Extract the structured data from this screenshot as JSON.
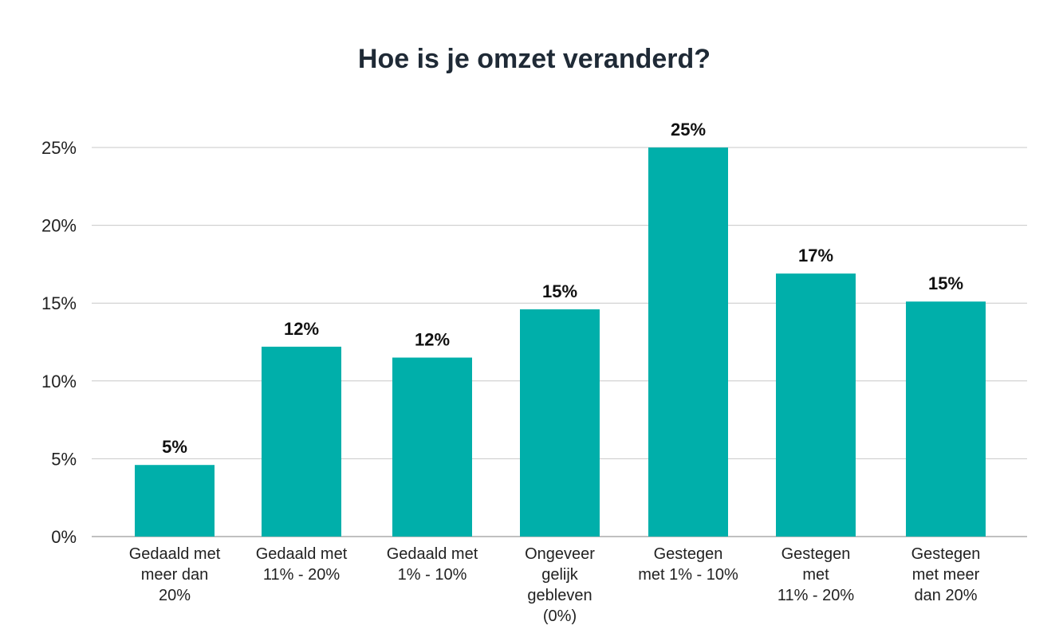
{
  "colors": {
    "bar": "#00afaa",
    "title": "#1f2a36"
  },
  "chart_data": {
    "type": "bar",
    "title": "Hoe is je omzet veranderd?",
    "xlabel": "",
    "ylabel": "",
    "ylim": [
      0,
      25
    ],
    "yticks": [
      0,
      5,
      10,
      15,
      20,
      25
    ],
    "ytick_labels": [
      "0%",
      "5%",
      "10%",
      "15%",
      "20%",
      "25%"
    ],
    "grid": true,
    "categories": [
      "Gedaald met meer dan 20%",
      "Gedaald met 11% - 20%",
      "Gedaald met 1% - 10%",
      "Ongeveer gelijk gebleven (0%)",
      "Gestegen met 1% - 10%",
      "Gestegen met 11% - 20%",
      "Gestegen met meer dan 20%"
    ],
    "category_lines": [
      [
        "Gedaald met",
        "meer dan",
        "20%"
      ],
      [
        "Gedaald met",
        "11% - 20%"
      ],
      [
        "Gedaald met",
        "1% - 10%"
      ],
      [
        "Ongeveer",
        "gelijk",
        "gebleven",
        "(0%)"
      ],
      [
        "Gestegen",
        "met 1% - 10%"
      ],
      [
        "Gestegen",
        "met",
        "11% - 20%"
      ],
      [
        "Gestegen",
        "met meer",
        "dan 20%"
      ]
    ],
    "values": [
      4.6,
      12.2,
      11.5,
      14.6,
      25.0,
      16.9,
      15.1
    ],
    "data_labels": [
      "5%",
      "12%",
      "12%",
      "15%",
      "25%",
      "17%",
      "15%"
    ]
  }
}
